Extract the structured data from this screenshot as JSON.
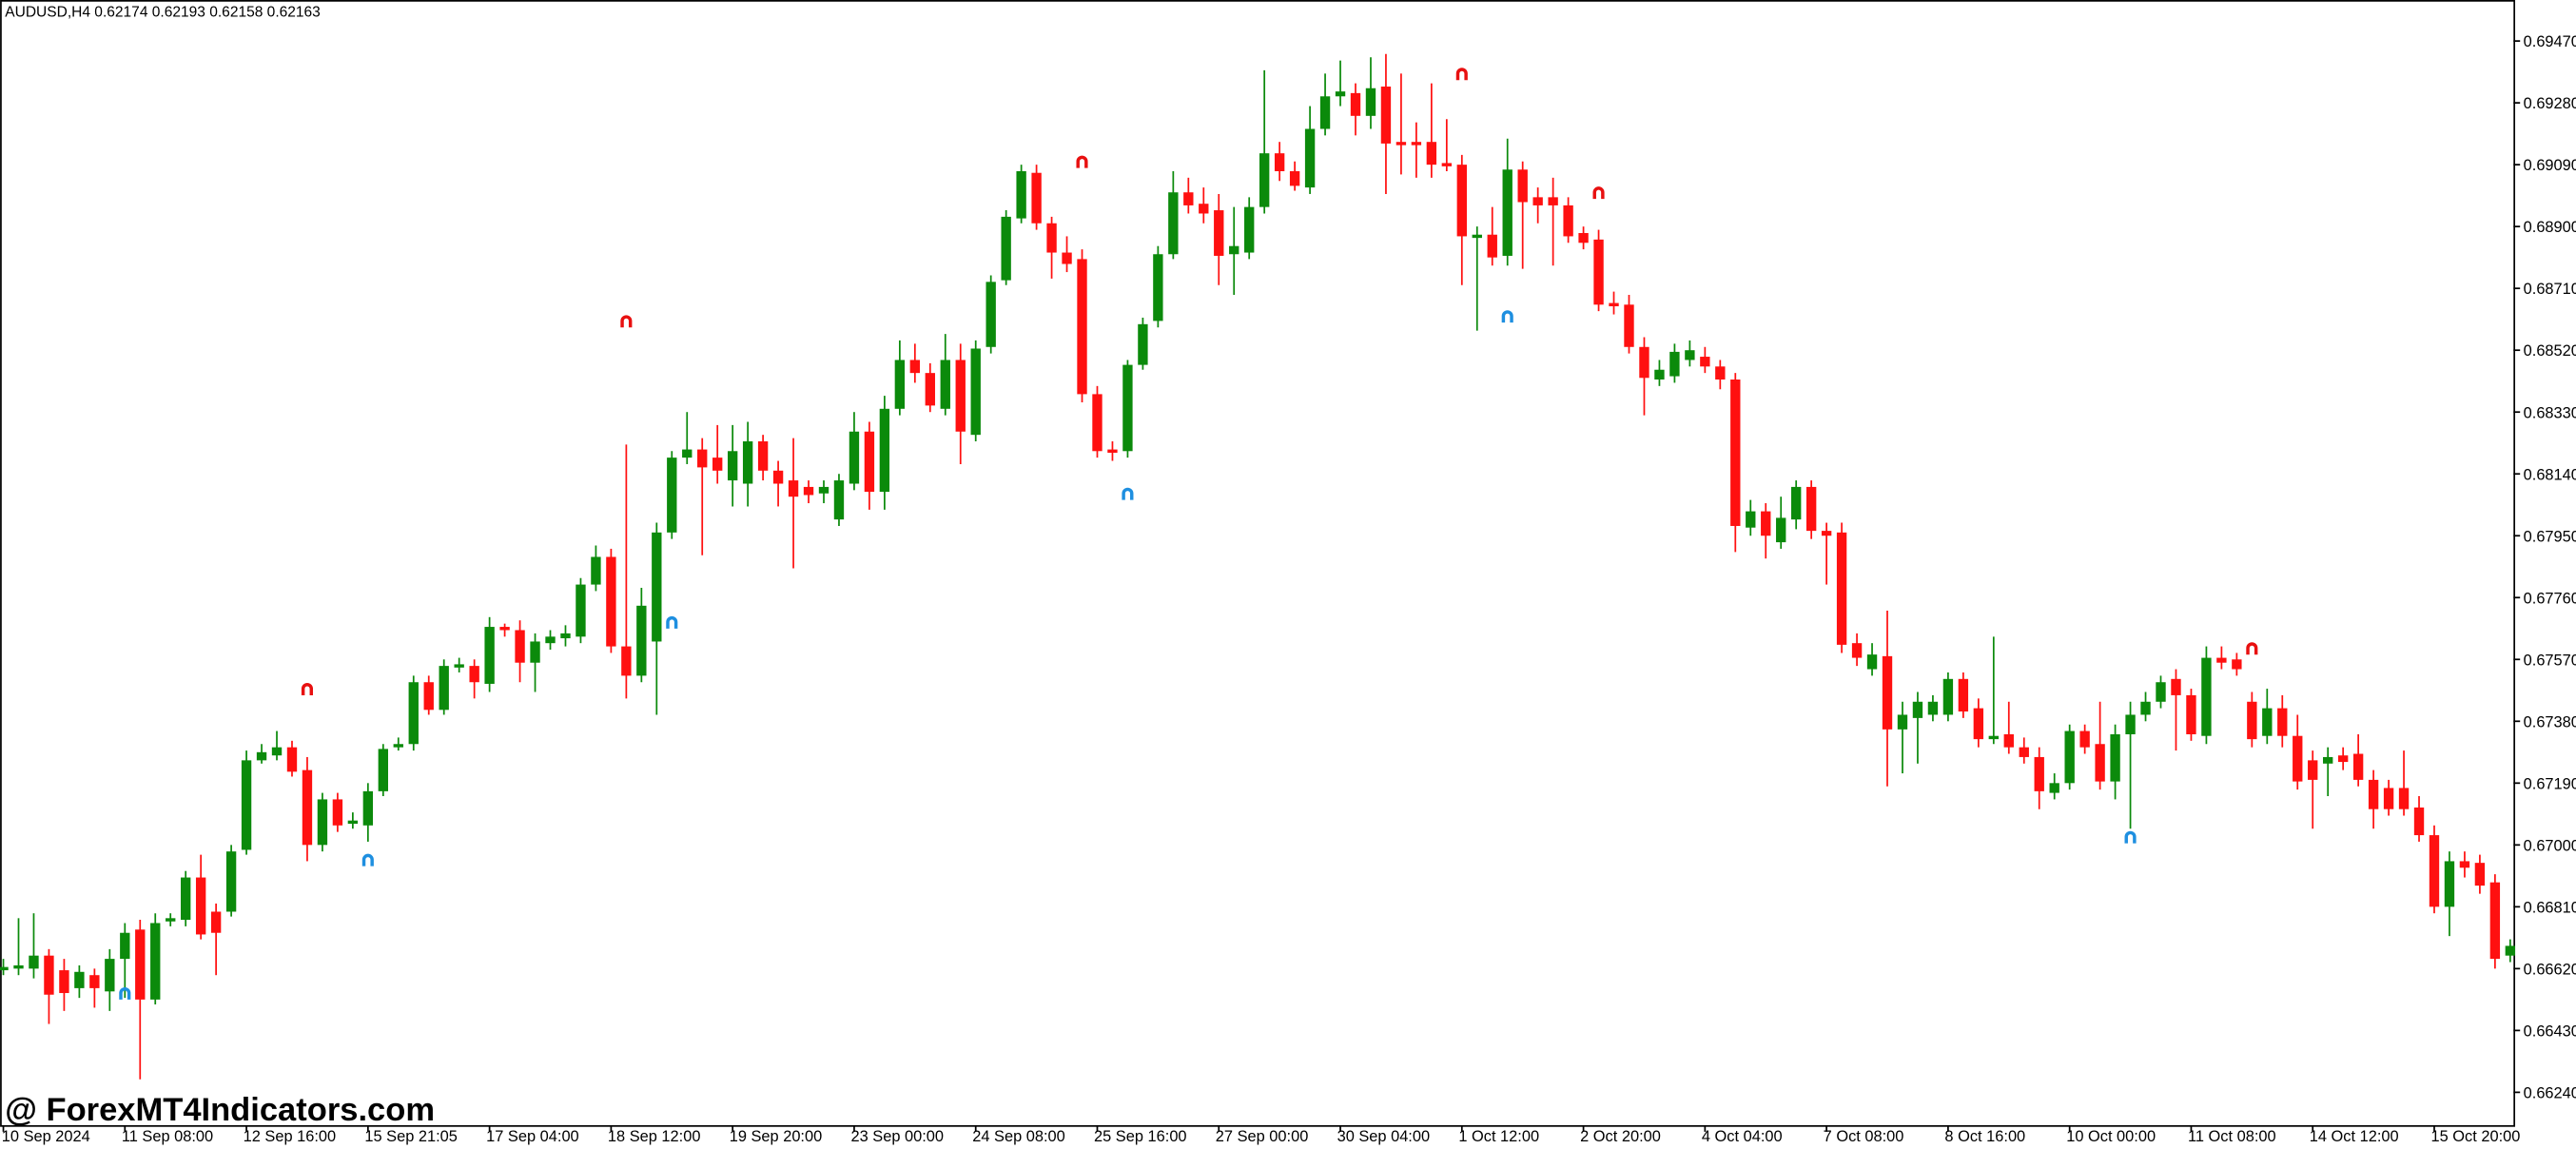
{
  "chart_data": {
    "type": "candlestick",
    "header": "AUDUSD,H4  0.62174 0.62193 0.62158 0.62163",
    "watermark": "@ ForexMT4Indicators.com",
    "up_color": "#0b8a0b",
    "down_color": "#ff1010",
    "sell_color": "#e81010",
    "buy_color": "#1e8fe0",
    "ylim": [
      0.66139,
      0.69596
    ],
    "yticks": [
      {
        "value": 0.6947,
        "label": "0.69470"
      },
      {
        "value": 0.6928,
        "label": "0.69280"
      },
      {
        "value": 0.6909,
        "label": "0.69090"
      },
      {
        "value": 0.689,
        "label": "0.68900"
      },
      {
        "value": 0.6871,
        "label": "0.68710"
      },
      {
        "value": 0.6852,
        "label": "0.68520"
      },
      {
        "value": 0.6833,
        "label": "0.68330"
      },
      {
        "value": 0.6814,
        "label": "0.68140"
      },
      {
        "value": 0.6795,
        "label": "0.67950"
      },
      {
        "value": 0.6776,
        "label": "0.67760"
      },
      {
        "value": 0.6757,
        "label": "0.67570"
      },
      {
        "value": 0.6738,
        "label": "0.67380"
      },
      {
        "value": 0.6719,
        "label": "0.67190"
      },
      {
        "value": 0.67,
        "label": "0.67000"
      },
      {
        "value": 0.6681,
        "label": "0.66810"
      },
      {
        "value": 0.6662,
        "label": "0.66620"
      },
      {
        "value": 0.6643,
        "label": "0.66430"
      },
      {
        "value": 0.6624,
        "label": "0.66240"
      }
    ],
    "xlim": [
      0,
      165
    ],
    "xticks": [
      {
        "value": 0,
        "label": "10 Sep 2024"
      },
      {
        "value": 8,
        "label": "11 Sep 08:00"
      },
      {
        "value": 16,
        "label": "12 Sep 16:00"
      },
      {
        "value": 24,
        "label": "15 Sep 21:05"
      },
      {
        "value": 32,
        "label": "17 Sep 04:00"
      },
      {
        "value": 40,
        "label": "18 Sep 12:00"
      },
      {
        "value": 48,
        "label": "19 Sep 20:00"
      },
      {
        "value": 56,
        "label": "23 Sep 00:00"
      },
      {
        "value": 64,
        "label": "24 Sep 08:00"
      },
      {
        "value": 72,
        "label": "25 Sep 16:00"
      },
      {
        "value": 80,
        "label": "27 Sep 00:00"
      },
      {
        "value": 88,
        "label": "30 Sep 04:00"
      },
      {
        "value": 96,
        "label": "1 Oct 12:00"
      },
      {
        "value": 104,
        "label": "2 Oct 20:00"
      },
      {
        "value": 112,
        "label": "4 Oct 04:00"
      },
      {
        "value": 120,
        "label": "7 Oct 08:00"
      },
      {
        "value": 128,
        "label": "8 Oct 16:00"
      },
      {
        "value": 136,
        "label": "10 Oct 00:00"
      },
      {
        "value": 144,
        "label": "11 Oct 08:00"
      },
      {
        "value": 152,
        "label": "14 Oct 12:00"
      },
      {
        "value": 160,
        "label": "15 Oct 20:00"
      }
    ],
    "open": [
      0.66615,
      0.6662,
      0.6662,
      0.6666,
      0.66615,
      0.6656,
      0.666,
      0.6655,
      0.6665,
      0.6674,
      0.66525,
      0.66765,
      0.6677,
      0.669,
      0.66795,
      0.66795,
      0.66985,
      0.6726,
      0.67275,
      0.673,
      0.6723,
      0.67,
      0.6714,
      0.67065,
      0.6706,
      0.67165,
      0.673,
      0.6731,
      0.675,
      0.67415,
      0.67545,
      0.6755,
      0.67495,
      0.6767,
      0.6766,
      0.6756,
      0.6762,
      0.67635,
      0.6764,
      0.678,
      0.67885,
      0.6761,
      0.6752,
      0.67625,
      0.6796,
      0.6819,
      0.68215,
      0.6819,
      0.6812,
      0.6811,
      0.6824,
      0.6815,
      0.6812,
      0.681,
      0.6808,
      0.68,
      0.6811,
      0.6827,
      0.68085,
      0.6834,
      0.6849,
      0.6845,
      0.6834,
      0.6849,
      0.6826,
      0.6853,
      0.68735,
      0.68925,
      0.69065,
      0.6891,
      0.6882,
      0.688,
      0.68385,
      0.68215,
      0.6821,
      0.68475,
      0.6861,
      0.68815,
      0.69005,
      0.6897,
      0.6895,
      0.68815,
      0.6882,
      0.6896,
      0.69125,
      0.6907,
      0.6902,
      0.692,
      0.693,
      0.6931,
      0.6924,
      0.6933,
      0.6916,
      0.6916,
      0.6916,
      0.69095,
      0.6909,
      0.68865,
      0.68875,
      0.6881,
      0.69075,
      0.6899,
      0.6899,
      0.68965,
      0.6888,
      0.6886,
      0.68665,
      0.6866,
      0.6853,
      0.6843,
      0.6844,
      0.6849,
      0.685,
      0.6847,
      0.6843,
      0.67975,
      0.68025,
      0.6793,
      0.68,
      0.681,
      0.67965,
      0.6796,
      0.6762,
      0.6754,
      0.6758,
      0.67355,
      0.6739,
      0.674,
      0.674,
      0.6751,
      0.6742,
      0.67325,
      0.6734,
      0.673,
      0.6727,
      0.6716,
      0.6719,
      0.6735,
      0.6731,
      0.67195,
      0.6734,
      0.674,
      0.6744,
      0.6751,
      0.6746,
      0.67335,
      0.67575,
      0.6757,
      0.6744,
      0.67335,
      0.6742,
      0.67335,
      0.6726,
      0.6725,
      0.67275,
      0.6728,
      0.672,
      0.67175,
      0.67175,
      0.67115,
      0.6703,
      0.6681,
      0.6695,
      0.66945,
      0.66885,
      0.6666
    ],
    "high": [
      0.6665,
      0.66775,
      0.6679,
      0.6668,
      0.6665,
      0.6663,
      0.6662,
      0.6668,
      0.6676,
      0.6677,
      0.6679,
      0.6679,
      0.6692,
      0.6697,
      0.6682,
      0.67,
      0.6729,
      0.6731,
      0.6735,
      0.6732,
      0.6727,
      0.6716,
      0.6716,
      0.671,
      0.6719,
      0.6731,
      0.6733,
      0.6752,
      0.6752,
      0.6757,
      0.67575,
      0.6757,
      0.677,
      0.6768,
      0.6769,
      0.6765,
      0.6766,
      0.67675,
      0.6782,
      0.6792,
      0.6791,
      0.6823,
      0.6779,
      0.6799,
      0.6821,
      0.6833,
      0.6825,
      0.6829,
      0.6829,
      0.683,
      0.6826,
      0.6818,
      0.6825,
      0.6812,
      0.6812,
      0.6814,
      0.6833,
      0.683,
      0.6838,
      0.6855,
      0.6854,
      0.6848,
      0.6857,
      0.6854,
      0.6855,
      0.6875,
      0.6895,
      0.6909,
      0.6909,
      0.6893,
      0.6887,
      0.6883,
      0.6841,
      0.6824,
      0.6849,
      0.6862,
      0.6884,
      0.6907,
      0.6905,
      0.6902,
      0.69,
      0.6896,
      0.6899,
      0.6938,
      0.6916,
      0.691,
      0.6927,
      0.6937,
      0.6941,
      0.6934,
      0.6942,
      0.6943,
      0.6937,
      0.6922,
      0.6934,
      0.6923,
      0.6912,
      0.689,
      0.6896,
      0.6917,
      0.691,
      0.6902,
      0.6905,
      0.6899,
      0.689,
      0.6889,
      0.687,
      0.6869,
      0.6856,
      0.6849,
      0.6854,
      0.6855,
      0.6853,
      0.6849,
      0.6845,
      0.6806,
      0.6805,
      0.6807,
      0.6812,
      0.6812,
      0.6799,
      0.6799,
      0.6765,
      0.6762,
      0.6772,
      0.6744,
      0.6747,
      0.6746,
      0.6753,
      0.6753,
      0.6745,
      0.6764,
      0.6744,
      0.6733,
      0.673,
      0.6722,
      0.6737,
      0.6737,
      0.6744,
      0.6737,
      0.6744,
      0.6747,
      0.6752,
      0.6754,
      0.6748,
      0.6761,
      0.6761,
      0.6759,
      0.6747,
      0.6748,
      0.6746,
      0.674,
      0.6729,
      0.673,
      0.673,
      0.6734,
      0.6723,
      0.672,
      0.6729,
      0.6715,
      0.6706,
      0.6698,
      0.6698,
      0.6697,
      0.6691,
      0.6671
    ],
    "low": [
      0.666,
      0.666,
      0.6659,
      0.6645,
      0.6649,
      0.6653,
      0.665,
      0.6649,
      0.6653,
      0.6628,
      0.6651,
      0.6675,
      0.6675,
      0.6671,
      0.666,
      0.6678,
      0.6697,
      0.6725,
      0.6726,
      0.6721,
      0.6695,
      0.6698,
      0.6704,
      0.6705,
      0.6701,
      0.6715,
      0.6729,
      0.6729,
      0.674,
      0.674,
      0.6753,
      0.6745,
      0.6747,
      0.6764,
      0.675,
      0.6747,
      0.676,
      0.6761,
      0.6762,
      0.6778,
      0.6759,
      0.6745,
      0.675,
      0.674,
      0.6794,
      0.6817,
      0.6789,
      0.6811,
      0.6804,
      0.6804,
      0.6812,
      0.6804,
      0.6785,
      0.6805,
      0.6805,
      0.6798,
      0.6809,
      0.6803,
      0.6803,
      0.6832,
      0.6842,
      0.6833,
      0.6832,
      0.6817,
      0.6824,
      0.6851,
      0.6872,
      0.6891,
      0.6889,
      0.6874,
      0.6876,
      0.6836,
      0.6819,
      0.6818,
      0.6819,
      0.6846,
      0.6859,
      0.688,
      0.6894,
      0.6891,
      0.6872,
      0.6869,
      0.688,
      0.6894,
      0.6904,
      0.6901,
      0.69,
      0.6918,
      0.6927,
      0.6918,
      0.692,
      0.69,
      0.6906,
      0.6905,
      0.6905,
      0.6907,
      0.6872,
      0.6858,
      0.6878,
      0.6878,
      0.6877,
      0.6891,
      0.6878,
      0.6885,
      0.6883,
      0.6864,
      0.6863,
      0.6851,
      0.6832,
      0.6841,
      0.6842,
      0.6847,
      0.6845,
      0.684,
      0.679,
      0.6795,
      0.6788,
      0.6791,
      0.6797,
      0.6794,
      0.678,
      0.6759,
      0.6755,
      0.6752,
      0.6718,
      0.6722,
      0.6725,
      0.6738,
      0.6738,
      0.6739,
      0.673,
      0.6731,
      0.6728,
      0.6725,
      0.6711,
      0.6714,
      0.6717,
      0.6728,
      0.6717,
      0.6714,
      0.6705,
      0.6738,
      0.6742,
      0.6729,
      0.6732,
      0.6731,
      0.6754,
      0.6752,
      0.673,
      0.6731,
      0.673,
      0.6717,
      0.6705,
      0.6715,
      0.6723,
      0.6718,
      0.6705,
      0.6709,
      0.6709,
      0.6701,
      0.6679,
      0.6672,
      0.669,
      0.6685,
      0.6662,
      0.6664
    ],
    "close": [
      0.66625,
      0.6663,
      0.6666,
      0.6654,
      0.66545,
      0.6661,
      0.6656,
      0.6665,
      0.6673,
      0.66525,
      0.6676,
      0.66775,
      0.669,
      0.66725,
      0.6673,
      0.6698,
      0.6726,
      0.67285,
      0.673,
      0.67225,
      0.67,
      0.6714,
      0.6706,
      0.67075,
      0.67165,
      0.67295,
      0.6731,
      0.675,
      0.67415,
      0.6755,
      0.67555,
      0.675,
      0.6767,
      0.6766,
      0.6756,
      0.67625,
      0.6764,
      0.6765,
      0.678,
      0.67885,
      0.6761,
      0.6752,
      0.67735,
      0.6796,
      0.6819,
      0.68215,
      0.6816,
      0.6815,
      0.6821,
      0.6824,
      0.6815,
      0.6811,
      0.6807,
      0.68075,
      0.681,
      0.6812,
      0.6827,
      0.68085,
      0.6834,
      0.6849,
      0.6845,
      0.6835,
      0.6849,
      0.6827,
      0.68525,
      0.6873,
      0.6893,
      0.6907,
      0.6891,
      0.6882,
      0.68785,
      0.68385,
      0.6821,
      0.68205,
      0.68475,
      0.686,
      0.68815,
      0.69005,
      0.68965,
      0.6894,
      0.6881,
      0.6884,
      0.6896,
      0.69125,
      0.6907,
      0.69025,
      0.692,
      0.693,
      0.69315,
      0.6924,
      0.69325,
      0.69155,
      0.6915,
      0.6915,
      0.6909,
      0.69085,
      0.6887,
      0.68875,
      0.68805,
      0.69075,
      0.68975,
      0.68965,
      0.68965,
      0.6887,
      0.6885,
      0.6866,
      0.68655,
      0.6853,
      0.68435,
      0.6846,
      0.68515,
      0.6852,
      0.6847,
      0.6843,
      0.6798,
      0.68025,
      0.6795,
      0.68005,
      0.681,
      0.67965,
      0.6795,
      0.67615,
      0.67575,
      0.67585,
      0.67355,
      0.674,
      0.6744,
      0.6744,
      0.6751,
      0.6741,
      0.67325,
      0.67335,
      0.673,
      0.6727,
      0.67165,
      0.6719,
      0.6735,
      0.673,
      0.67195,
      0.6734,
      0.674,
      0.6744,
      0.675,
      0.6746,
      0.6734,
      0.67575,
      0.6756,
      0.6754,
      0.67325,
      0.6742,
      0.67335,
      0.67195,
      0.672,
      0.6727,
      0.67255,
      0.672,
      0.6711,
      0.6711,
      0.6711,
      0.6703,
      0.6681,
      0.6695,
      0.6693,
      0.66875,
      0.6665,
      0.6669
    ],
    "sell_signals": {
      "x": [
        20,
        41,
        71,
        96,
        105,
        148
      ],
      "values": [
        0.67475,
        0.68605,
        0.69095,
        0.69365,
        0.69,
        0.676
      ]
    },
    "buy_signals": {
      "x": [
        8,
        24,
        44,
        74,
        99,
        140
      ],
      "values": [
        0.6654,
        0.6695,
        0.6768,
        0.68075,
        0.6862,
        0.6702
      ]
    }
  }
}
